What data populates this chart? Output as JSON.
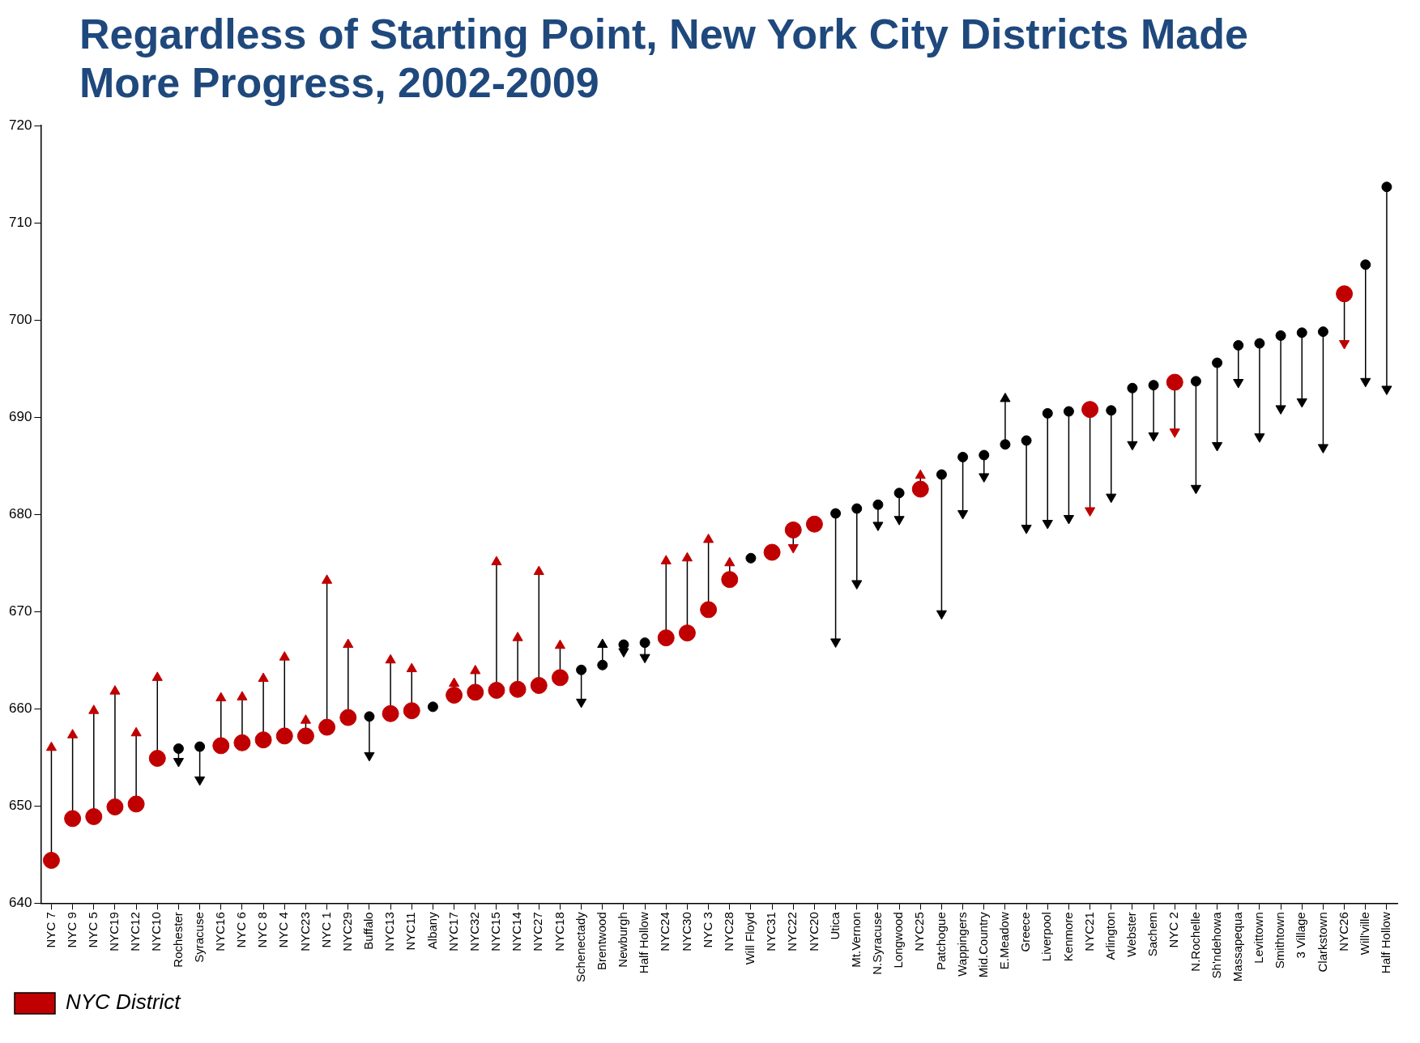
{
  "chart_data": {
    "type": "scatter",
    "title": "Regardless of Starting Point, New York City Districts Made More Progress, 2002-2009",
    "categories": [
      "NYC 7",
      "NYC 9",
      "NYC 5",
      "NYC19",
      "NYC12",
      "NYC10",
      "Rochester",
      "Syracuse",
      "NYC16",
      "NYC 6",
      "NYC 8",
      "NYC 4",
      "NYC23",
      "NYC 1",
      "NYC29",
      "Buffalo",
      "NYC13",
      "NYC11",
      "Albany",
      "NYC17",
      "NYC32",
      "NYC15",
      "NYC14",
      "NYC27",
      "NYC18",
      "Schenectady",
      "Brentwood",
      "Newburgh",
      "Half Hollow",
      "NYC24",
      "NYC30",
      "NYC 3",
      "NYC28",
      "Will Floyd",
      "NYC31",
      "NYC22",
      "NYC20",
      "Utica",
      "Mt.Vernon",
      "N.Syracuse",
      "Longwood",
      "NYC25",
      "Patchogue",
      "Wappingers",
      "Mid.Country",
      "E.Meadow",
      "Greece",
      "Liverpool",
      "Kenmore",
      "NYC21",
      "Arlington",
      "Webster",
      "Sachem",
      "NYC 2",
      "N.Rochelle",
      "Sh'ndehowa",
      "Massapequa",
      "Levittown",
      "Smithtown",
      "3 Village",
      "Clarkstown",
      "NYC26",
      "Will'ville",
      "Half Hollow"
    ],
    "series": [
      {
        "name": "NYC District",
        "color": "#c00000",
        "marker": "circle",
        "values": [
          644.4,
          648.7,
          648.9,
          649.9,
          650.2,
          654.9,
          null,
          null,
          656.2,
          656.5,
          656.8,
          657.2,
          657.2,
          658.1,
          659.1,
          null,
          659.5,
          659.8,
          null,
          661.4,
          661.7,
          661.9,
          662.0,
          662.4,
          663.2,
          null,
          null,
          null,
          null,
          667.3,
          667.8,
          670.2,
          673.3,
          null,
          676.1,
          678.4,
          679.0,
          null,
          null,
          null,
          null,
          682.6,
          null,
          null,
          null,
          null,
          null,
          null,
          null,
          690.8,
          null,
          null,
          null,
          693.6,
          null,
          null,
          null,
          null,
          null,
          null,
          null,
          702.7,
          null,
          null
        ]
      },
      {
        "color": "#c00000",
        "marker": "triangle",
        "values": [
          656.0,
          657.3,
          659.8,
          661.8,
          657.5,
          663.2,
          null,
          null,
          661.1,
          661.2,
          663.1,
          665.3,
          658.8,
          673.2,
          666.6,
          null,
          665.0,
          664.1,
          null,
          662.6,
          663.9,
          675.1,
          667.3,
          674.1,
          666.5,
          null,
          null,
          null,
          null,
          675.2,
          675.5,
          677.4,
          675.0,
          null,
          null,
          676.6,
          null,
          null,
          null,
          null,
          null,
          684.0,
          null,
          null,
          null,
          null,
          null,
          null,
          null,
          680.4,
          null,
          null,
          null,
          688.5,
          null,
          null,
          null,
          null,
          null,
          null,
          null,
          697.6,
          null,
          null
        ]
      },
      {
        "color": "#000000",
        "marker": "circle",
        "values": [
          null,
          null,
          null,
          null,
          null,
          null,
          655.9,
          656.1,
          null,
          null,
          null,
          null,
          null,
          null,
          null,
          659.2,
          null,
          null,
          660.2,
          null,
          null,
          null,
          null,
          null,
          null,
          664.0,
          664.5,
          666.6,
          666.8,
          null,
          null,
          null,
          null,
          675.5,
          null,
          null,
          null,
          680.1,
          680.6,
          681.0,
          682.2,
          null,
          684.1,
          685.9,
          686.1,
          687.2,
          687.6,
          690.4,
          690.6,
          null,
          690.7,
          693.0,
          693.3,
          null,
          693.7,
          695.6,
          697.4,
          697.6,
          698.4,
          698.7,
          698.8,
          null,
          705.7,
          713.7
        ]
      },
      {
        "color": "#000000",
        "marker": "triangle",
        "values": [
          null,
          null,
          null,
          null,
          null,
          null,
          654.6,
          652.7,
          null,
          null,
          null,
          null,
          null,
          null,
          null,
          655.2,
          null,
          null,
          null,
          null,
          null,
          null,
          null,
          null,
          null,
          660.7,
          666.6,
          665.9,
          665.3,
          null,
          null,
          null,
          null,
          null,
          null,
          null,
          null,
          666.9,
          672.9,
          678.9,
          679.5,
          null,
          669.8,
          680.1,
          683.9,
          691.9,
          678.6,
          679.1,
          679.6,
          null,
          681.8,
          687.2,
          688.1,
          null,
          682.7,
          687.1,
          693.6,
          688.0,
          690.9,
          691.6,
          686.9,
          null,
          693.7,
          692.9
        ]
      }
    ],
    "ylim": [
      640,
      720
    ],
    "yticks": [
      640,
      650,
      660,
      670,
      680,
      690,
      700,
      710,
      720
    ],
    "grid": false,
    "legend": "bottom left"
  }
}
